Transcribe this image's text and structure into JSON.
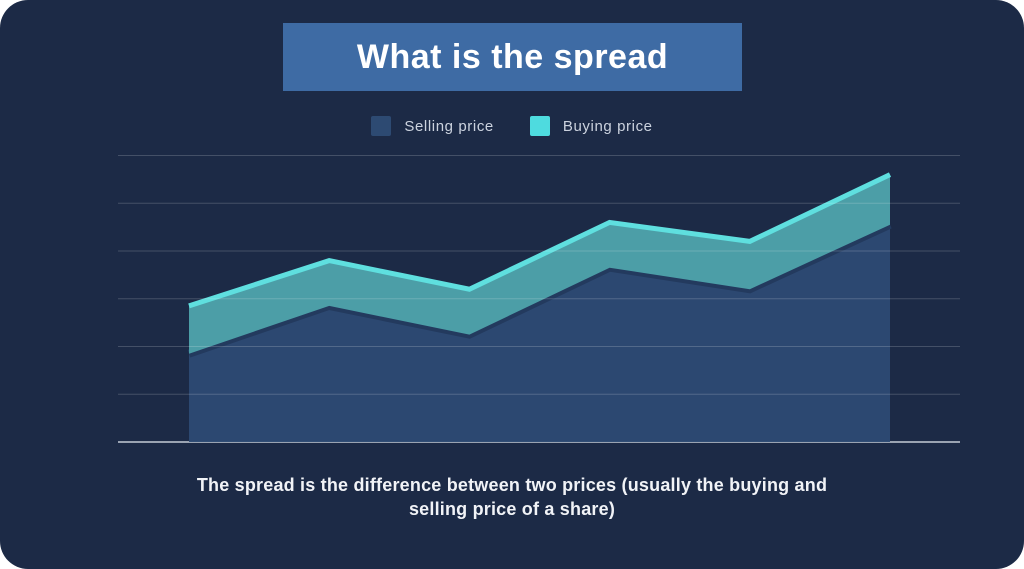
{
  "title": {
    "label": "What is the spread"
  },
  "legend": {
    "items": [
      {
        "label": "Selling price",
        "color": "#2d4a72"
      },
      {
        "label": "Buying price",
        "color": "#4edbdf"
      }
    ]
  },
  "caption": {
    "lines": [
      "The spread is the difference between two prices (usually the buying and",
      "selling price of a share)"
    ]
  },
  "colors": {
    "card_background": "#1c2a46",
    "title_box": "#3e6ba4",
    "title_text": "#ffffff",
    "legend_text": "#ccd3df",
    "caption_text": "#f1f3f7",
    "gridline": "rgba(255,255,255,0.18)",
    "axis_baseline": "rgba(225,231,240,0.85)"
  },
  "chart_data": {
    "type": "area",
    "x": [
      1,
      2,
      3,
      4,
      5,
      6
    ],
    "x_labels_shown": false,
    "y_labels_shown": false,
    "series": [
      {
        "name": "Selling price",
        "values": [
          1.85,
          2.85,
          2.25,
          3.65,
          3.2,
          4.55
        ],
        "color": "#2d4a72"
      },
      {
        "name": "Buying price",
        "values": [
          2.85,
          3.8,
          3.2,
          4.6,
          4.2,
          5.6
        ],
        "color": "#5fdfdf"
      }
    ],
    "spread_band_fill": "#4c9ea7",
    "selling_edge_shadow": "#233a5e",
    "ylim": [
      0,
      6
    ],
    "grid": true,
    "gridline_count": 7,
    "legend_position": "top",
    "title": "What is the spread",
    "annotation": "The spread is the difference between two prices (usually the buying and selling price of a share)"
  }
}
